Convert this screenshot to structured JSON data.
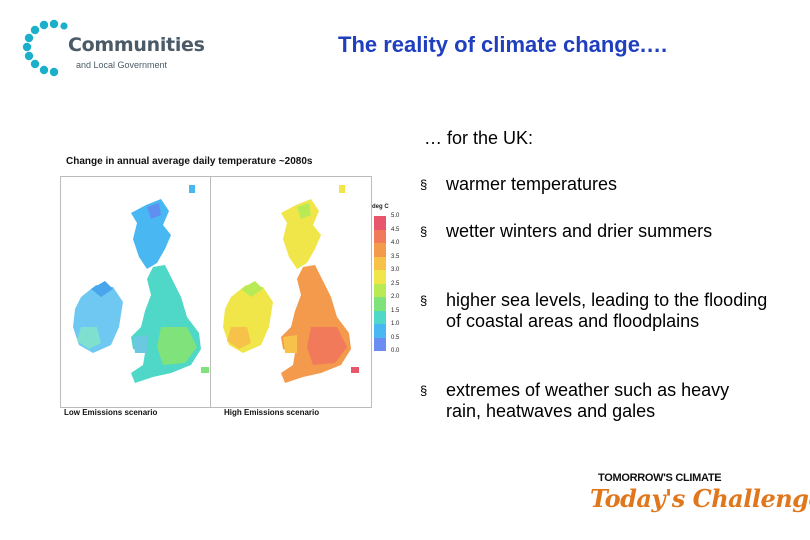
{
  "logo": {
    "name": "Communities",
    "sub": "and Local Government"
  },
  "title": "The reality of climate change.…",
  "intro": "… for the UK:",
  "bullets": [
    {
      "mark": "§",
      "text": "warmer temperatures"
    },
    {
      "mark": "§",
      "text": "wetter winters and drier summers"
    },
    {
      "mark": "§",
      "text": "higher sea levels, leading to the flooding of coastal areas and floodplains"
    },
    {
      "mark": "§",
      "text": "extremes of weather such as heavy rain, heatwaves and gales"
    }
  ],
  "figure": {
    "title": "Change in annual average daily temperature ~2080s",
    "panels": [
      {
        "label": "Low Emissions scenario"
      },
      {
        "label": "High Emissions scenario"
      }
    ],
    "legend": {
      "unit": "deg C",
      "ticks": [
        "5.0",
        "4.5",
        "4.0",
        "3.5",
        "3.0",
        "2.5",
        "2.0",
        "1.5",
        "1.0",
        "0.5",
        "0.0"
      ],
      "colors": [
        "#e8566b",
        "#f07a5a",
        "#f39a4d",
        "#f6c24a",
        "#f0e64a",
        "#b8ea55",
        "#7fe27a",
        "#4fd7c8",
        "#49b7f2",
        "#6b8cf0"
      ]
    }
  },
  "brand_logo": {
    "top": "TOMORROW'S CLIMATE",
    "bottom": "Today's Challenge"
  },
  "colors": {
    "title": "#1f3fbf",
    "logo_dots": "#1ab0c9",
    "brand_orange": "#e0771c"
  }
}
